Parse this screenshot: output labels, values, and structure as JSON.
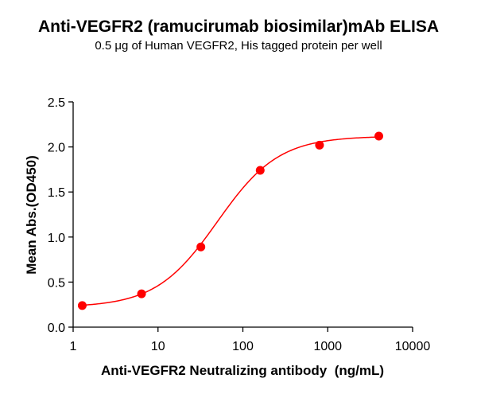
{
  "chart_data": {
    "type": "scatter",
    "title": "Anti-VEGFR2 (ramucirumab biosimilar)mAb ELISA",
    "subtitle": "0.5 μg of Human VEGFR2, His tagged protein per well",
    "xlabel": "Anti-VEGFR2 Neutralizing antibody  (ng/mL)",
    "ylabel": "Mean Abs.(OD450)",
    "x_scale": "log",
    "xlim": [
      1,
      10000
    ],
    "ylim": [
      0,
      2.5
    ],
    "x_ticks": [
      "1",
      "10",
      "100",
      "1000",
      "10000"
    ],
    "y_ticks": [
      "0.0",
      "0.5",
      "1.0",
      "1.5",
      "2.0",
      "2.5"
    ],
    "grid": false,
    "fit_curve": "sigmoidal",
    "color": "#ff0000",
    "series": [
      {
        "x": [
          1.28,
          6.4,
          32,
          160,
          800,
          4000
        ],
        "y": [
          0.24,
          0.37,
          0.89,
          1.74,
          2.02,
          2.12
        ]
      }
    ]
  }
}
